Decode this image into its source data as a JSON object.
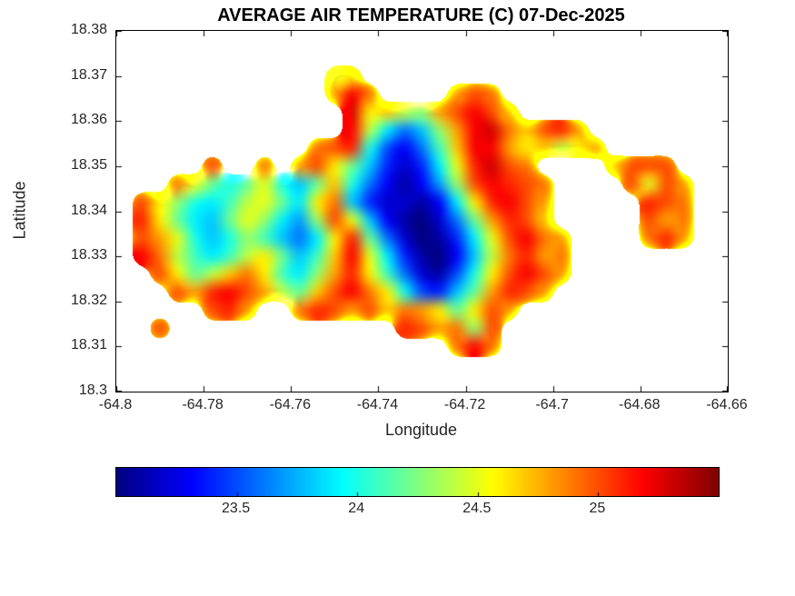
{
  "figure": {
    "background": "#ffffff"
  },
  "chart_data": {
    "type": "heatmap",
    "title": "AVERAGE AIR TEMPERATURE (C) 07-Dec-2025",
    "xlabel": "Longitude",
    "ylabel": "Latitude",
    "x_range": [
      -64.8,
      -64.66
    ],
    "y_range": [
      18.3,
      18.38
    ],
    "x_ticks": [
      -64.8,
      -64.78,
      -64.76,
      -64.74,
      -64.72,
      -64.7,
      -64.68,
      -64.66
    ],
    "x_tick_labels": [
      "-64.8",
      "-64.78",
      "-64.76",
      "-64.74",
      "-64.72",
      "-64.7",
      "-64.68",
      "-64.66"
    ],
    "y_ticks": [
      18.3,
      18.31,
      18.32,
      18.33,
      18.34,
      18.35,
      18.36,
      18.37,
      18.38
    ],
    "y_tick_labels": [
      "18.3",
      "18.31",
      "18.32",
      "18.33",
      "18.34",
      "18.35",
      "18.36",
      "18.37",
      "18.38"
    ],
    "value_range": [
      23,
      25.5
    ],
    "colormap": "jet",
    "grid_lines": "off",
    "colorbar": {
      "orientation": "horizontal",
      "ticks": [
        23.5,
        24,
        24.5,
        25
      ],
      "tick_labels": [
        "23.5",
        "24",
        "24.5",
        "25"
      ]
    },
    "grid": {
      "cols": 35,
      "rows": 20,
      "lon_min": -64.8,
      "lon_max": -64.66,
      "lat_min": 18.3,
      "lat_max": 18.38,
      "values": [
        [
          null,
          null,
          null,
          null,
          null,
          null,
          null,
          null,
          null,
          null,
          null,
          null,
          null,
          null,
          null,
          null,
          null,
          null,
          null,
          null,
          null,
          null,
          null,
          null,
          null,
          null,
          null,
          null,
          null,
          null,
          null,
          null,
          null,
          null,
          null
        ],
        [
          null,
          null,
          null,
          null,
          null,
          null,
          null,
          null,
          null,
          null,
          null,
          null,
          null,
          null,
          null,
          null,
          null,
          null,
          null,
          null,
          null,
          null,
          null,
          null,
          null,
          null,
          null,
          null,
          null,
          null,
          null,
          null,
          null,
          null,
          null
        ],
        [
          null,
          null,
          null,
          null,
          null,
          null,
          null,
          null,
          null,
          null,
          null,
          null,
          24.5,
          24.6,
          null,
          null,
          null,
          null,
          null,
          null,
          null,
          null,
          null,
          null,
          null,
          null,
          null,
          null,
          null,
          null,
          null,
          null,
          null,
          null,
          null
        ],
        [
          null,
          null,
          null,
          null,
          null,
          null,
          null,
          null,
          null,
          null,
          null,
          null,
          24.8,
          25.2,
          24.9,
          null,
          null,
          null,
          null,
          24.8,
          25.0,
          24.9,
          null,
          null,
          null,
          null,
          null,
          null,
          null,
          null,
          null,
          null,
          null,
          null,
          null
        ],
        [
          null,
          null,
          null,
          null,
          null,
          null,
          null,
          null,
          null,
          null,
          null,
          null,
          null,
          25.3,
          24.6,
          24.7,
          24.4,
          24.3,
          24.8,
          25.0,
          25.2,
          25.0,
          24.7,
          null,
          null,
          null,
          null,
          null,
          null,
          null,
          null,
          null,
          null,
          null,
          null
        ],
        [
          null,
          null,
          null,
          null,
          null,
          null,
          null,
          null,
          null,
          null,
          null,
          null,
          null,
          25.2,
          24.4,
          23.9,
          23.6,
          23.8,
          24.3,
          24.8,
          25.2,
          25.3,
          24.9,
          24.7,
          25.0,
          25.1,
          24.8,
          null,
          null,
          null,
          null,
          null,
          null,
          null,
          null
        ],
        [
          null,
          null,
          null,
          null,
          null,
          null,
          null,
          null,
          null,
          null,
          null,
          24.9,
          25.0,
          25.1,
          24.0,
          23.5,
          23.3,
          23.6,
          24.1,
          24.7,
          25.2,
          25.2,
          24.8,
          24.6,
          24.7,
          24.4,
          24.6,
          24.8,
          null,
          null,
          null,
          null,
          null,
          null,
          null
        ],
        [
          null,
          null,
          null,
          null,
          null,
          25.0,
          null,
          null,
          24.9,
          null,
          24.8,
          25.0,
          24.6,
          24.2,
          23.8,
          23.4,
          23.2,
          23.4,
          23.9,
          24.5,
          25.1,
          25.3,
          25.0,
          24.9,
          null,
          null,
          null,
          null,
          24.7,
          25.0,
          25.0,
          25.0,
          null,
          null,
          null
        ],
        [
          null,
          null,
          null,
          24.9,
          24.5,
          24.2,
          24.0,
          24.2,
          24.5,
          24.0,
          23.8,
          24.2,
          24.7,
          24.0,
          23.6,
          23.3,
          23.1,
          23.3,
          23.7,
          24.3,
          25.0,
          25.2,
          25.1,
          25.0,
          24.9,
          null,
          null,
          null,
          null,
          25.0,
          24.5,
          25.0,
          24.8,
          null,
          null
        ],
        [
          null,
          25.0,
          24.6,
          24.3,
          24.0,
          23.9,
          24.1,
          24.4,
          24.5,
          24.2,
          23.9,
          24.6,
          24.9,
          23.8,
          23.4,
          23.2,
          23.2,
          23.1,
          23.3,
          23.9,
          24.6,
          25.1,
          25.2,
          25.0,
          24.8,
          null,
          null,
          null,
          null,
          null,
          25.1,
          25.0,
          24.9,
          null,
          null
        ],
        [
          null,
          25.1,
          24.6,
          24.2,
          23.9,
          23.8,
          24.2,
          24.5,
          24.3,
          23.9,
          23.7,
          24.3,
          25.0,
          24.5,
          23.8,
          23.3,
          23.1,
          23.0,
          23.2,
          23.6,
          24.2,
          24.8,
          25.1,
          25.0,
          24.7,
          null,
          null,
          null,
          null,
          null,
          25.0,
          24.8,
          24.9,
          null,
          null
        ],
        [
          null,
          25.0,
          24.8,
          24.5,
          24.0,
          23.8,
          24.0,
          24.3,
          24.1,
          23.8,
          23.6,
          23.9,
          24.6,
          25.1,
          24.2,
          23.6,
          23.2,
          23.0,
          23.1,
          23.4,
          23.9,
          24.5,
          25.0,
          25.2,
          24.9,
          24.8,
          null,
          null,
          null,
          null,
          24.9,
          25.1,
          24.8,
          null,
          null
        ],
        [
          null,
          25.2,
          24.9,
          24.4,
          24.1,
          23.9,
          24.1,
          24.4,
          24.6,
          24.2,
          23.8,
          24.1,
          24.7,
          25.2,
          24.5,
          23.9,
          23.4,
          23.1,
          23.0,
          23.3,
          23.8,
          24.4,
          24.9,
          25.1,
          24.8,
          24.9,
          null,
          null,
          null,
          null,
          null,
          null,
          null,
          null,
          null
        ],
        [
          null,
          null,
          25.0,
          24.6,
          24.2,
          24.4,
          24.7,
          24.9,
          24.6,
          24.1,
          23.9,
          24.3,
          24.8,
          25.1,
          24.6,
          24.1,
          23.6,
          23.2,
          23.1,
          23.5,
          24.0,
          24.6,
          25.0,
          25.2,
          25.0,
          24.8,
          null,
          null,
          null,
          null,
          null,
          null,
          null,
          null,
          null
        ],
        [
          null,
          null,
          null,
          25.0,
          24.8,
          25.1,
          25.2,
          25.0,
          24.8,
          24.4,
          24.2,
          24.7,
          25.0,
          25.2,
          24.9,
          24.6,
          24.0,
          23.5,
          23.4,
          23.8,
          24.2,
          24.8,
          25.1,
          25.0,
          24.8,
          null,
          null,
          null,
          null,
          null,
          null,
          null,
          null,
          null,
          null
        ],
        [
          null,
          null,
          null,
          null,
          null,
          25.0,
          25.1,
          24.8,
          null,
          null,
          24.9,
          25.1,
          25.0,
          24.8,
          25.0,
          24.7,
          24.9,
          24.8,
          24.6,
          24.2,
          24.6,
          25.0,
          24.8,
          null,
          null,
          null,
          null,
          null,
          null,
          null,
          null,
          null,
          null,
          null,
          null
        ],
        [
          null,
          null,
          25.0,
          null,
          null,
          null,
          null,
          null,
          null,
          null,
          null,
          null,
          null,
          null,
          null,
          null,
          25.1,
          25.0,
          24.8,
          24.9,
          24.3,
          25.0,
          null,
          null,
          null,
          null,
          null,
          null,
          null,
          null,
          null,
          null,
          null,
          null,
          null
        ],
        [
          null,
          null,
          null,
          null,
          null,
          null,
          null,
          null,
          null,
          null,
          null,
          null,
          null,
          null,
          null,
          null,
          null,
          null,
          null,
          24.9,
          25.2,
          24.9,
          null,
          null,
          null,
          null,
          null,
          null,
          null,
          null,
          null,
          null,
          null,
          null,
          null
        ],
        [
          null,
          null,
          null,
          null,
          null,
          null,
          null,
          null,
          null,
          null,
          null,
          null,
          null,
          null,
          null,
          null,
          null,
          null,
          null,
          null,
          null,
          null,
          null,
          null,
          null,
          null,
          null,
          null,
          null,
          null,
          null,
          null,
          null,
          null,
          null
        ],
        [
          null,
          null,
          null,
          null,
          null,
          null,
          null,
          null,
          null,
          null,
          null,
          null,
          null,
          null,
          null,
          null,
          null,
          null,
          null,
          null,
          null,
          null,
          null,
          null,
          null,
          null,
          null,
          null,
          null,
          null,
          null,
          null,
          null,
          null,
          null
        ]
      ]
    }
  }
}
